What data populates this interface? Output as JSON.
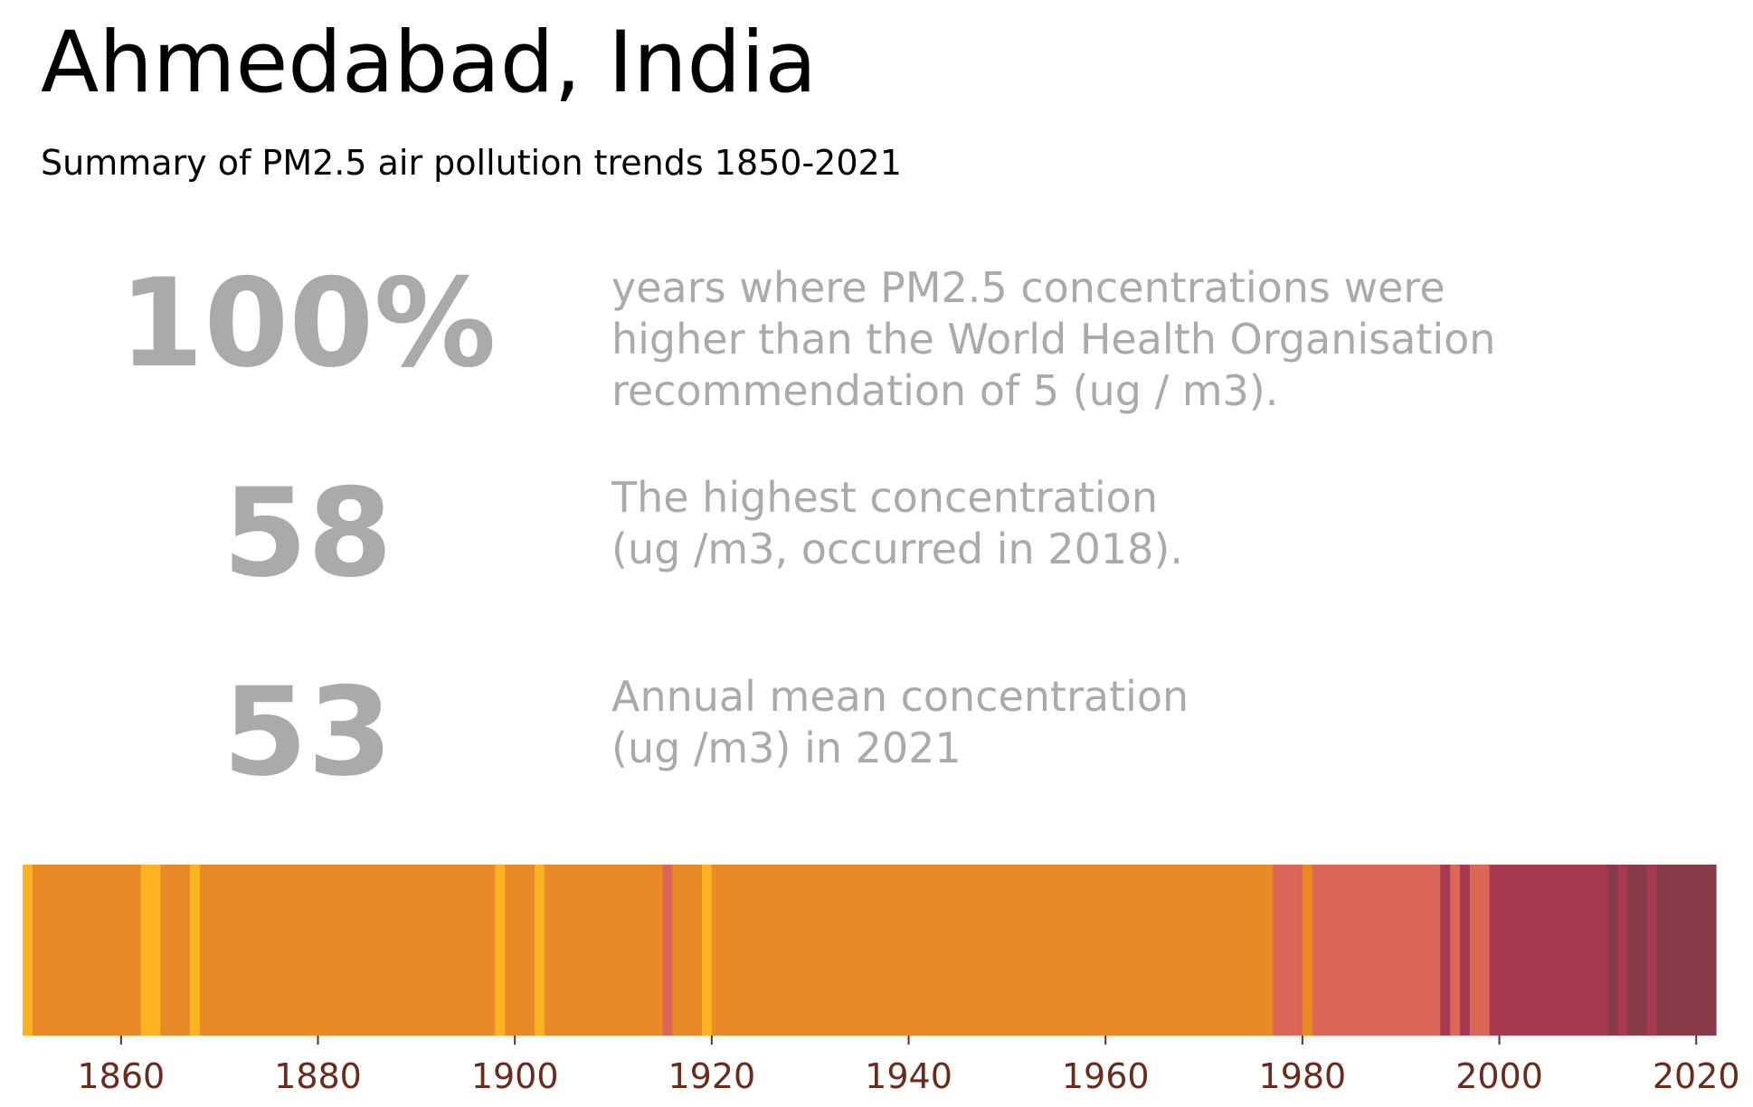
{
  "header": {
    "title": "Ahmedabad, India",
    "subtitle": "Summary of PM2.5 air pollution trends 1850-2021"
  },
  "stats": [
    {
      "value": "100%",
      "lines": [
        "years where PM2.5 concentrations were",
        "higher than the World Health Organisation",
        "recommendation of 5 (ug / m3)."
      ]
    },
    {
      "value": "58",
      "lines": [
        "The highest concentration",
        "(ug /m3, occurred in 2018)."
      ]
    },
    {
      "value": "53",
      "lines": [
        "Annual mean concentration",
        "(ug /m3) in 2021"
      ]
    }
  ],
  "chart_data": {
    "type": "heatmap",
    "xlim": [
      1850,
      2022
    ],
    "x_ticks": [
      1860,
      1880,
      1900,
      1920,
      1940,
      1960,
      1980,
      2000,
      2020
    ],
    "grid": false,
    "colors": {
      "level_1": "#fbb324",
      "level_2": "#e98a26",
      "level_3": "#dc6759",
      "level_4": "#a53a51",
      "level_5": "#893a49"
    },
    "bands": [
      {
        "start": 1850,
        "end": 1851,
        "level": "level_1"
      },
      {
        "start": 1851,
        "end": 1862,
        "level": "level_2"
      },
      {
        "start": 1862,
        "end": 1864,
        "level": "level_1"
      },
      {
        "start": 1864,
        "end": 1867,
        "level": "level_2"
      },
      {
        "start": 1867,
        "end": 1868,
        "level": "level_1"
      },
      {
        "start": 1868,
        "end": 1898,
        "level": "level_2"
      },
      {
        "start": 1898,
        "end": 1899,
        "level": "level_1"
      },
      {
        "start": 1899,
        "end": 1902,
        "level": "level_2"
      },
      {
        "start": 1902,
        "end": 1903,
        "level": "level_1"
      },
      {
        "start": 1903,
        "end": 1915,
        "level": "level_2"
      },
      {
        "start": 1915,
        "end": 1916,
        "level": "level_3"
      },
      {
        "start": 1916,
        "end": 1919,
        "level": "level_2"
      },
      {
        "start": 1919,
        "end": 1920,
        "level": "level_1"
      },
      {
        "start": 1920,
        "end": 1977,
        "level": "level_2"
      },
      {
        "start": 1977,
        "end": 1980,
        "level": "level_3"
      },
      {
        "start": 1980,
        "end": 1981,
        "level": "level_2"
      },
      {
        "start": 1981,
        "end": 1994,
        "level": "level_3"
      },
      {
        "start": 1994,
        "end": 1995,
        "level": "level_4"
      },
      {
        "start": 1995,
        "end": 1996,
        "level": "level_3"
      },
      {
        "start": 1996,
        "end": 1997,
        "level": "level_4"
      },
      {
        "start": 1997,
        "end": 1999,
        "level": "level_3"
      },
      {
        "start": 1999,
        "end": 2011,
        "level": "level_4"
      },
      {
        "start": 2011,
        "end": 2012,
        "level": "level_5"
      },
      {
        "start": 2012,
        "end": 2013,
        "level": "level_4"
      },
      {
        "start": 2013,
        "end": 2015,
        "level": "level_5"
      },
      {
        "start": 2015,
        "end": 2016,
        "level": "level_4"
      },
      {
        "start": 2016,
        "end": 2022,
        "level": "level_5"
      }
    ],
    "tick_color": "#6b2a1e"
  }
}
